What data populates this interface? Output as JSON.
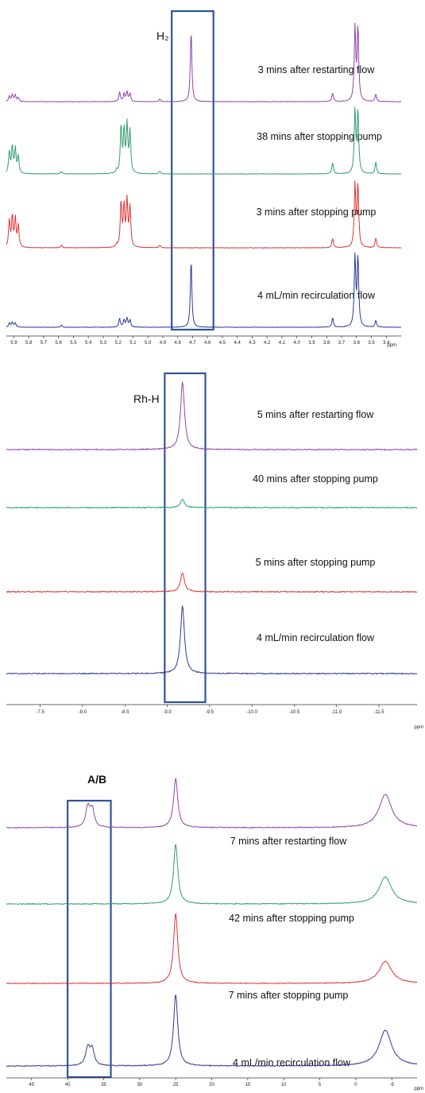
{
  "colors": {
    "purple": "#8e44ad",
    "green": "#2e9e6e",
    "red": "#e03434",
    "blue": "#2b3a9a",
    "box": "#2f5597"
  },
  "chart_data": [
    {
      "type": "line",
      "title": "H₂",
      "xunit": "ppm",
      "xlim": [
        5.95,
        3.3
      ],
      "ticks": [
        "5.9",
        "5.8",
        "5.7",
        "5.6",
        "5.5",
        "5.4",
        "5.3",
        "5.2",
        "5.1",
        "5.0",
        "4.9",
        "4.8",
        "4.7",
        "4.6",
        "4.5",
        "4.4",
        "4.3",
        "4.2",
        "4.1",
        "4.0",
        "3.9",
        "3.8",
        "3.7",
        "3.6",
        "3.5",
        "3.4"
      ],
      "highlight_range": [
        4.84,
        4.56
      ],
      "series": [
        {
          "name": "3 mins after restarting flow",
          "color": "purple",
          "peaks": [
            [
              5.93,
              0.07
            ],
            [
              5.91,
              0.09
            ],
            [
              5.89,
              0.08
            ],
            [
              5.87,
              0.05
            ],
            [
              5.19,
              0.12
            ],
            [
              5.16,
              0.1
            ],
            [
              5.14,
              0.12
            ],
            [
              5.12,
              0.1
            ],
            [
              4.92,
              0.03
            ],
            [
              4.71,
              0.9
            ],
            [
              3.76,
              0.11
            ],
            [
              3.61,
              0.92
            ],
            [
              3.59,
              0.92
            ],
            [
              3.47,
              0.09
            ]
          ]
        },
        {
          "name": "38 mins after stopping pump",
          "color": "green",
          "peaks": [
            [
              5.93,
              0.34
            ],
            [
              5.91,
              0.42
            ],
            [
              5.89,
              0.38
            ],
            [
              5.87,
              0.27
            ],
            [
              5.58,
              0.04
            ],
            [
              5.21,
              0.05
            ],
            [
              5.18,
              0.74
            ],
            [
              5.16,
              0.66
            ],
            [
              5.14,
              0.74
            ],
            [
              5.12,
              0.66
            ],
            [
              4.92,
              0.04
            ],
            [
              3.76,
              0.18
            ],
            [
              3.61,
              0.98
            ],
            [
              3.59,
              0.98
            ],
            [
              3.47,
              0.18
            ]
          ]
        },
        {
          "name": "3 mins after stopping pump",
          "color": "red",
          "peaks": [
            [
              5.93,
              0.42
            ],
            [
              5.91,
              0.48
            ],
            [
              5.89,
              0.44
            ],
            [
              5.87,
              0.34
            ],
            [
              5.58,
              0.04
            ],
            [
              5.21,
              0.04
            ],
            [
              5.18,
              0.71
            ],
            [
              5.16,
              0.63
            ],
            [
              5.14,
              0.71
            ],
            [
              5.12,
              0.63
            ],
            [
              4.92,
              0.04
            ],
            [
              3.76,
              0.15
            ],
            [
              3.61,
              0.98
            ],
            [
              3.59,
              0.98
            ],
            [
              3.47,
              0.15
            ]
          ]
        },
        {
          "name": "4 mL/min recirculation flow",
          "color": "blue",
          "peaks": [
            [
              5.93,
              0.06
            ],
            [
              5.91,
              0.07
            ],
            [
              5.89,
              0.06
            ],
            [
              5.58,
              0.03
            ],
            [
              5.19,
              0.12
            ],
            [
              5.16,
              0.1
            ],
            [
              5.14,
              0.12
            ],
            [
              5.12,
              0.1
            ],
            [
              4.71,
              0.92
            ],
            [
              3.76,
              0.13
            ],
            [
              3.61,
              0.95
            ],
            [
              3.59,
              0.95
            ],
            [
              3.47,
              0.09
            ]
          ]
        }
      ]
    },
    {
      "type": "line",
      "title": "Rh-H",
      "xunit": "ppm",
      "xlim": [
        -7.1,
        -11.95
      ],
      "ticks": [
        "-7.5",
        "-8.0",
        "-8.5",
        "-9.0",
        "-9.5",
        "-10.0",
        "-10.5",
        "-11.0",
        "-11.5"
      ],
      "highlight_range": [
        -8.97,
        -9.45
      ],
      "series": [
        {
          "name": "5 mins after restarting flow",
          "color": "purple",
          "peaks": [
            [
              -9.18,
              1.0
            ]
          ]
        },
        {
          "name": "40 mins after stopping pump",
          "color": "green",
          "peaks": [
            [
              -9.18,
              0.12
            ]
          ]
        },
        {
          "name": "5 mins after stopping pump",
          "color": "red",
          "peaks": [
            [
              -9.18,
              0.28
            ]
          ]
        },
        {
          "name": "4 mL/min recirculation flow",
          "color": "blue",
          "peaks": [
            [
              -9.18,
              1.0
            ]
          ]
        }
      ]
    },
    {
      "type": "line",
      "title": "A/B",
      "xunit": "ppm",
      "xlim": [
        48.5,
        -8.5
      ],
      "ticks": [
        "45",
        "40",
        "35",
        "30",
        "25",
        "20",
        "15",
        "10",
        "5",
        "0",
        "-5"
      ],
      "highlight_range": [
        40,
        34
      ],
      "series": [
        {
          "name": "7 mins after restarting flow",
          "color": "purple",
          "peaks": [
            [
              37.2,
              0.25
            ],
            [
              36.6,
              0.22
            ],
            [
              25.0,
              0.62
            ],
            [
              -4.1,
              0.42
            ]
          ]
        },
        {
          "name": "42 mins after stopping pump",
          "color": "green",
          "peaks": [
            [
              25.0,
              0.75
            ],
            [
              -4.1,
              0.34
            ]
          ]
        },
        {
          "name": "7 mins after stopping pump",
          "color": "red",
          "peaks": [
            [
              25.0,
              0.88
            ],
            [
              -4.1,
              0.28
            ]
          ]
        },
        {
          "name": "4 mL/min recirculation flow",
          "color": "blue",
          "peaks": [
            [
              37.2,
              0.22
            ],
            [
              36.6,
              0.2
            ],
            [
              25.0,
              0.9
            ],
            [
              -4.1,
              0.45
            ]
          ]
        }
      ]
    }
  ]
}
